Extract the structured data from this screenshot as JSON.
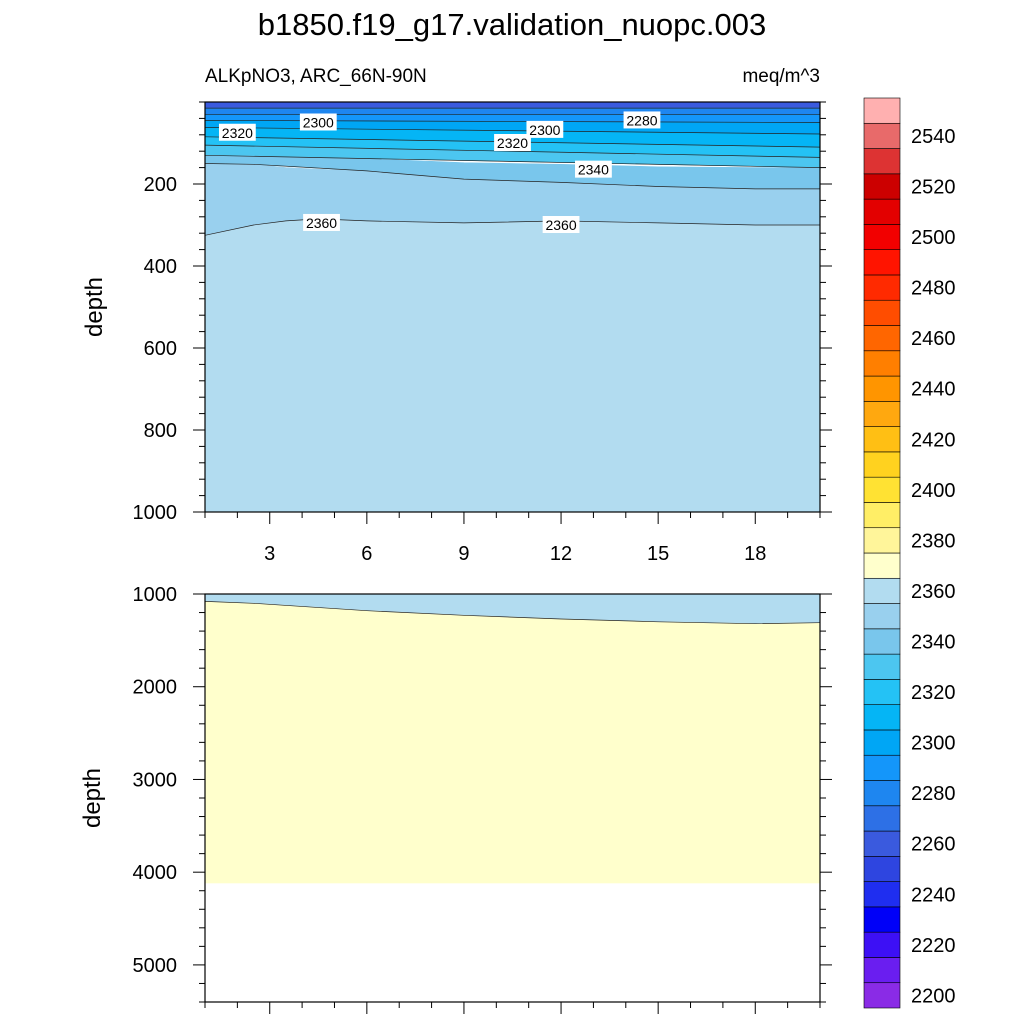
{
  "title": "b1850.f19_g17.validation_nuopc.003",
  "subtitle_left": "ALKpNO3, ARC_66N-90N",
  "subtitle_right": "meq/m^3",
  "chart_data": [
    {
      "type": "contour",
      "panel": "upper",
      "ylabel": "depth",
      "ylim": [
        1000,
        0
      ],
      "xlim": [
        1,
        20
      ],
      "y_ticks": [
        200,
        400,
        600,
        800,
        1000
      ],
      "x_ticks": [
        3,
        6,
        9,
        12,
        15,
        18
      ],
      "contour_labels": [
        {
          "text": "2320",
          "x": 2.0,
          "y": 75
        },
        {
          "text": "2300",
          "x": 4.5,
          "y": 50
        },
        {
          "text": "2320",
          "x": 10.5,
          "y": 100
        },
        {
          "text": "2300",
          "x": 11.5,
          "y": 68
        },
        {
          "text": "2280",
          "x": 14.5,
          "y": 45
        },
        {
          "text": "2340",
          "x": 13.0,
          "y": 165
        },
        {
          "text": "2360",
          "x": 4.6,
          "y": 295
        },
        {
          "text": "2360",
          "x": 12.0,
          "y": 300
        }
      ],
      "regions": [
        {
          "level": 2260,
          "x": [
            1,
            20
          ],
          "top": [
            0,
            0
          ],
          "bottom": [
            15,
            15
          ]
        },
        {
          "level": 2280,
          "x": [
            1,
            20
          ],
          "top": [
            15,
            15
          ],
          "bottom": [
            30,
            30
          ]
        },
        {
          "level": 2290,
          "x": [
            1,
            20
          ],
          "top": [
            30,
            30
          ],
          "bottom": [
            45,
            50
          ]
        },
        {
          "level": 2300,
          "x": [
            1,
            20
          ],
          "top": [
            45,
            50
          ],
          "bottom": [
            62,
            78
          ]
        },
        {
          "level": 2310,
          "x": [
            1,
            20
          ],
          "top": [
            62,
            78
          ],
          "bottom": [
            85,
            110
          ]
        },
        {
          "level": 2320,
          "x": [
            1,
            20
          ],
          "top": [
            85,
            110
          ],
          "bottom": [
            105,
            135
          ]
        },
        {
          "level": 2330,
          "x": [
            1,
            20
          ],
          "top": [
            105,
            135
          ],
          "bottom": [
            130,
            160
          ]
        },
        {
          "level": 2340,
          "x": [
            1,
            2.5,
            6,
            9,
            12,
            15,
            18,
            20
          ],
          "top": [
            130,
            132,
            138,
            148,
            152,
            158,
            160,
            160
          ],
          "bottom": [
            150,
            152,
            168,
            188,
            196,
            206,
            212,
            212
          ]
        },
        {
          "level": 2350,
          "x": [
            1,
            2.5,
            3.5,
            4.5,
            6,
            9,
            12,
            15,
            18,
            20
          ],
          "top": [
            150,
            152,
            160,
            164,
            168,
            188,
            196,
            206,
            212,
            212
          ],
          "bottom": [
            325,
            300,
            290,
            285,
            290,
            295,
            290,
            295,
            300,
            300
          ]
        },
        {
          "level": 2360,
          "x": [
            1,
            2.5,
            3.5,
            4.5,
            6,
            9,
            12,
            15,
            18,
            20
          ],
          "top": [
            325,
            300,
            290,
            285,
            290,
            295,
            290,
            295,
            300,
            300
          ],
          "bottom": [
            1000,
            1000,
            1000,
            1000,
            1000,
            1000,
            1000,
            1000,
            1000,
            1000
          ]
        }
      ]
    },
    {
      "type": "contour",
      "panel": "lower",
      "ylabel": "depth",
      "ylim": [
        5400,
        1000
      ],
      "xlim": [
        1,
        20
      ],
      "y_ticks": [
        1000,
        2000,
        3000,
        4000,
        5000
      ],
      "bottom_fill": 4120,
      "regions": [
        {
          "level": 2360,
          "x": [
            1,
            2.5,
            6,
            9,
            12,
            15,
            18,
            20
          ],
          "top": [
            1000,
            1000,
            1000,
            1000,
            1000,
            1000,
            1000,
            1000
          ],
          "bottom": [
            1080,
            1100,
            1180,
            1230,
            1270,
            1300,
            1320,
            1310
          ]
        },
        {
          "level": 2370,
          "x": [
            1,
            2.5,
            6,
            9,
            12,
            15,
            18,
            20
          ],
          "top": [
            1080,
            1100,
            1180,
            1230,
            1270,
            1300,
            1320,
            1310
          ],
          "bottom": [
            4120,
            4120,
            4120,
            4120,
            4120,
            4120,
            4120,
            4120
          ]
        }
      ]
    }
  ],
  "colorbar": {
    "levels": [
      2200,
      2210,
      2220,
      2230,
      2240,
      2250,
      2260,
      2270,
      2280,
      2290,
      2300,
      2310,
      2320,
      2330,
      2340,
      2350,
      2360,
      2370,
      2380,
      2390,
      2400,
      2410,
      2420,
      2430,
      2440,
      2450,
      2460,
      2470,
      2480,
      2490,
      2500,
      2510,
      2520,
      2530,
      2540,
      2550
    ],
    "labels": [
      "2200",
      "2220",
      "2240",
      "2260",
      "2280",
      "2300",
      "2320",
      "2340",
      "2360",
      "2380",
      "2400",
      "2420",
      "2440",
      "2460",
      "2480",
      "2500",
      "2520",
      "2540"
    ],
    "colors": [
      "#8a2be6",
      "#6a1ef0",
      "#3d10f5",
      "#0000f8",
      "#1f2ef0",
      "#2e45e0",
      "#3a5ade",
      "#2d70e6",
      "#1e86f0",
      "#1496fa",
      "#00a6f5",
      "#05b5f5",
      "#24c2f5",
      "#4cc6f0",
      "#79c6ec",
      "#99d0ee",
      "#b2dcf0",
      "#ffffcc",
      "#fff59a",
      "#ffee66",
      "#ffe233",
      "#ffd21f",
      "#ffbf14",
      "#ffa80f",
      "#ff9500",
      "#ff7f00",
      "#ff6600",
      "#ff4d00",
      "#ff2a00",
      "#ff1400",
      "#f20000",
      "#e30000",
      "#cc0000",
      "#dd3333",
      "#e86a6a",
      "#ffb0b0"
    ]
  }
}
